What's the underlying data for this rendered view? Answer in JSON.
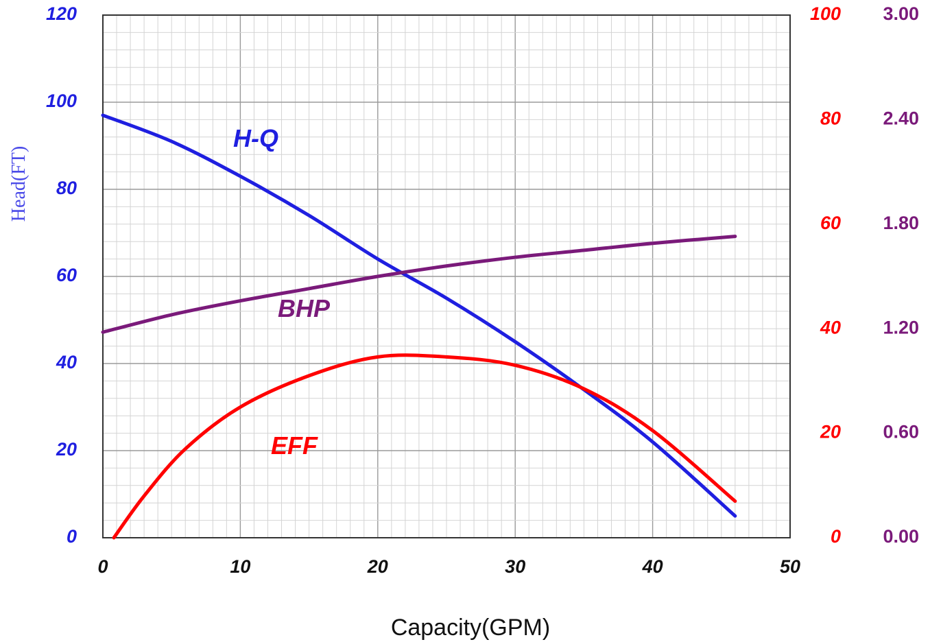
{
  "chart_data": {
    "type": "line",
    "xlabel": "Capacity(GPM)",
    "ylabel": "Head(FT)",
    "xlim": [
      0,
      50
    ],
    "x_ticks": [
      "0",
      "10",
      "20",
      "30",
      "40",
      "50"
    ],
    "y_left": {
      "lim": [
        0,
        120
      ],
      "ticks": [
        "0",
        "20",
        "40",
        "60",
        "80",
        "100",
        "120"
      ],
      "color": "#1f1fe0"
    },
    "y_right_eff": {
      "lim": [
        0,
        100
      ],
      "ticks": [
        "0",
        "20",
        "40",
        "60",
        "80",
        "100"
      ],
      "color": "#ff0000"
    },
    "y_right_bhp": {
      "lim": [
        0,
        3.0
      ],
      "ticks": [
        "0.00",
        "0.60",
        "1.20",
        "1.80",
        "2.40",
        "3.00"
      ],
      "color": "#7a1a7a"
    },
    "grid": true,
    "series": [
      {
        "name": "H-Q",
        "axis": "left",
        "color": "#1f1fe0",
        "x": [
          0,
          5,
          10,
          15,
          20,
          25,
          30,
          35,
          40,
          46
        ],
        "values": [
          97,
          91,
          83,
          74,
          64,
          55,
          45,
          34,
          22,
          5
        ]
      },
      {
        "name": "BHP",
        "axis": "bhp",
        "color": "#7a1a7a",
        "x": [
          0,
          5,
          10,
          15,
          20,
          25,
          30,
          35,
          40,
          46
        ],
        "values": [
          1.18,
          1.28,
          1.36,
          1.43,
          1.5,
          1.56,
          1.61,
          1.65,
          1.69,
          1.73
        ]
      },
      {
        "name": "EFF",
        "axis": "eff",
        "color": "#ff0000",
        "x": [
          0.8,
          3,
          6,
          10,
          15,
          20,
          25,
          30,
          35,
          40,
          46
        ],
        "values": [
          0,
          8,
          17,
          25,
          31,
          34.6,
          34.6,
          33,
          28.5,
          20.5,
          7
        ]
      }
    ]
  }
}
